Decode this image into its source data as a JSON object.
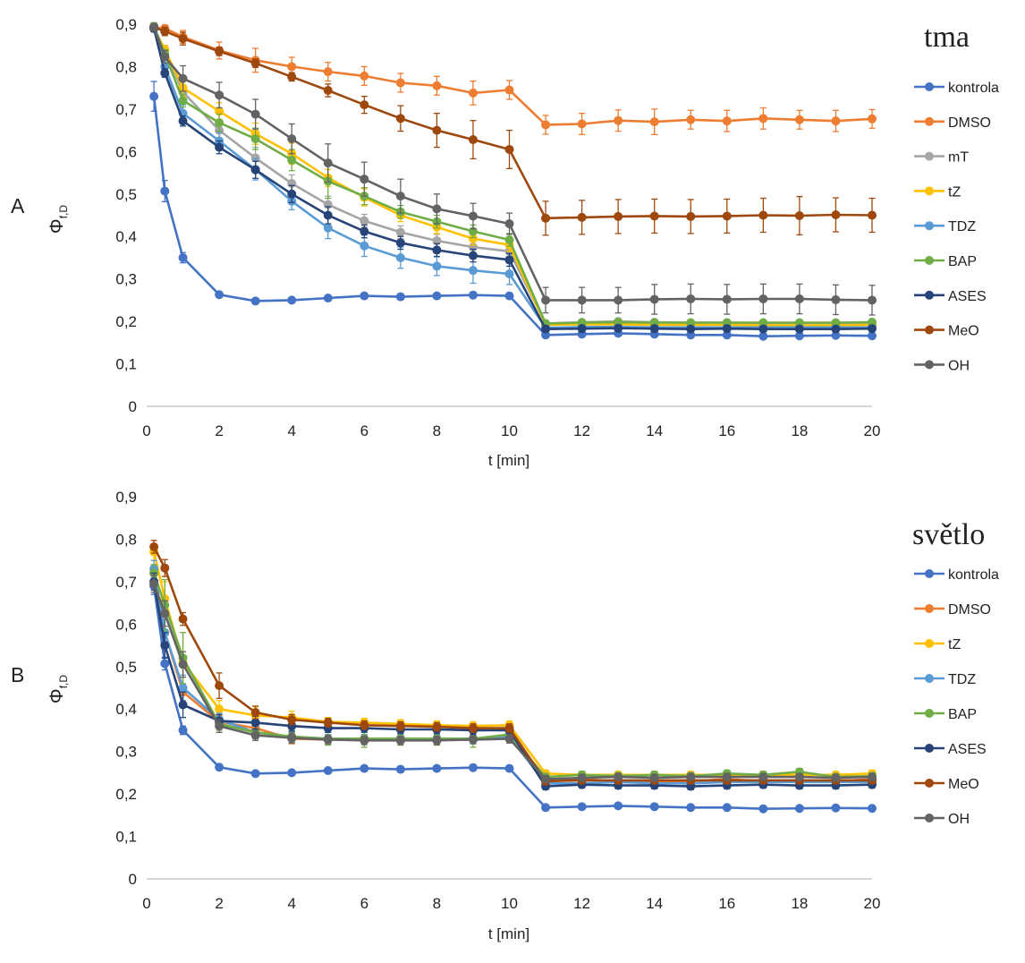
{
  "chart_data": [
    {
      "type": "line",
      "panel_label": "A",
      "title": "tma",
      "xlabel": "t [min]",
      "ylabel": "Φ",
      "ylabel_sub": "f,D",
      "xlim": [
        0,
        20
      ],
      "ylim": [
        0,
        0.9
      ],
      "xticks": [
        "0",
        "2",
        "4",
        "6",
        "8",
        "10",
        "12",
        "14",
        "16",
        "18",
        "20"
      ],
      "yticks": [
        "0",
        "0,1",
        "0,2",
        "0,3",
        "0,4",
        "0,5",
        "0,6",
        "0,7",
        "0,8",
        "0,9"
      ],
      "grid": false,
      "legend_position": "right",
      "x": [
        0.2,
        0.5,
        1,
        2,
        3,
        4,
        5,
        6,
        7,
        8,
        9,
        10,
        11,
        12,
        13,
        14,
        15,
        16,
        17,
        18,
        19,
        20
      ],
      "series": [
        {
          "name": "kontrola",
          "color": "#4472C4",
          "values": [
            0.73,
            0.507,
            0.35,
            0.263,
            0.248,
            0.25,
            0.255,
            0.26,
            0.258,
            0.26,
            0.262,
            0.26,
            0.168,
            0.17,
            0.172,
            0.17,
            0.168,
            0.168,
            0.165,
            0.166,
            0.167,
            0.166
          ],
          "errors": [
            0.035,
            0.025,
            0.012,
            0.006,
            0.006,
            0.006,
            0.006,
            0.006,
            0.006,
            0.006,
            0.006,
            0.006,
            0.006,
            0.006,
            0.006,
            0.006,
            0.006,
            0.006,
            0.006,
            0.006,
            0.006,
            0.006
          ]
        },
        {
          "name": "DMSO",
          "color": "#ED7D31",
          "values": [
            0.892,
            0.89,
            0.87,
            0.838,
            0.815,
            0.8,
            0.788,
            0.778,
            0.762,
            0.755,
            0.738,
            0.745,
            0.663,
            0.665,
            0.673,
            0.67,
            0.675,
            0.672,
            0.678,
            0.675,
            0.672,
            0.677
          ],
          "errors": [
            0.008,
            0.008,
            0.015,
            0.02,
            0.028,
            0.022,
            0.022,
            0.022,
            0.022,
            0.022,
            0.028,
            0.022,
            0.022,
            0.025,
            0.025,
            0.03,
            0.022,
            0.025,
            0.025,
            0.022,
            0.025,
            0.022
          ]
        },
        {
          "name": "mT",
          "color": "#A5A5A5",
          "values": [
            0.89,
            0.84,
            0.74,
            0.65,
            0.585,
            0.525,
            0.475,
            0.437,
            0.41,
            0.39,
            0.375,
            0.365,
            0.195,
            0.198,
            0.2,
            0.198,
            0.197,
            0.197,
            0.196,
            0.196,
            0.196,
            0.196
          ],
          "errors": [
            0.008,
            0.01,
            0.015,
            0.02,
            0.025,
            0.02,
            0.02,
            0.015,
            0.015,
            0.015,
            0.015,
            0.015,
            0.005,
            0.005,
            0.005,
            0.005,
            0.005,
            0.005,
            0.005,
            0.005,
            0.005,
            0.005
          ]
        },
        {
          "name": "tZ",
          "color": "#FFC000",
          "values": [
            0.89,
            0.84,
            0.75,
            0.695,
            0.642,
            0.595,
            0.538,
            0.492,
            0.45,
            0.422,
            0.395,
            0.38,
            0.192,
            0.193,
            0.193,
            0.192,
            0.192,
            0.192,
            0.191,
            0.191,
            0.191,
            0.192
          ],
          "errors": [
            0.008,
            0.01,
            0.02,
            0.02,
            0.025,
            0.025,
            0.02,
            0.02,
            0.015,
            0.015,
            0.015,
            0.015,
            0.005,
            0.005,
            0.005,
            0.005,
            0.005,
            0.005,
            0.005,
            0.005,
            0.005,
            0.005
          ]
        },
        {
          "name": "TDZ",
          "color": "#5B9BD5",
          "values": [
            0.89,
            0.8,
            0.69,
            0.625,
            0.558,
            0.483,
            0.42,
            0.378,
            0.35,
            0.33,
            0.32,
            0.312,
            0.185,
            0.187,
            0.187,
            0.186,
            0.186,
            0.186,
            0.186,
            0.186,
            0.186,
            0.186
          ],
          "errors": [
            0.008,
            0.01,
            0.02,
            0.02,
            0.025,
            0.02,
            0.025,
            0.025,
            0.025,
            0.022,
            0.03,
            0.025,
            0.005,
            0.005,
            0.005,
            0.005,
            0.005,
            0.005,
            0.005,
            0.005,
            0.005,
            0.005
          ]
        },
        {
          "name": "BAP",
          "color": "#70AD47",
          "values": [
            0.895,
            0.83,
            0.72,
            0.668,
            0.63,
            0.58,
            0.53,
            0.495,
            0.458,
            0.435,
            0.412,
            0.392,
            0.195,
            0.197,
            0.198,
            0.197,
            0.197,
            0.197,
            0.197,
            0.197,
            0.197,
            0.198
          ],
          "errors": [
            0.008,
            0.01,
            0.015,
            0.02,
            0.025,
            0.025,
            0.04,
            0.02,
            0.015,
            0.015,
            0.015,
            0.015,
            0.005,
            0.005,
            0.005,
            0.005,
            0.005,
            0.005,
            0.005,
            0.005,
            0.005,
            0.005
          ]
        },
        {
          "name": "ASES",
          "color": "#264478",
          "values": [
            0.89,
            0.785,
            0.672,
            0.61,
            0.557,
            0.5,
            0.45,
            0.412,
            0.385,
            0.368,
            0.355,
            0.345,
            0.182,
            0.183,
            0.184,
            0.183,
            0.182,
            0.183,
            0.182,
            0.182,
            0.182,
            0.183
          ],
          "errors": [
            0.008,
            0.01,
            0.012,
            0.015,
            0.02,
            0.02,
            0.02,
            0.015,
            0.015,
            0.015,
            0.015,
            0.015,
            0.005,
            0.005,
            0.005,
            0.005,
            0.005,
            0.005,
            0.005,
            0.005,
            0.005,
            0.005
          ]
        },
        {
          "name": "MeO",
          "color": "#9E480E",
          "values": [
            0.893,
            0.883,
            0.866,
            0.836,
            0.808,
            0.776,
            0.744,
            0.71,
            0.678,
            0.65,
            0.628,
            0.605,
            0.443,
            0.445,
            0.447,
            0.448,
            0.447,
            0.448,
            0.45,
            0.449,
            0.451,
            0.45
          ],
          "errors": [
            0.008,
            0.01,
            0.015,
            0.01,
            0.01,
            0.01,
            0.015,
            0.02,
            0.03,
            0.04,
            0.045,
            0.045,
            0.04,
            0.04,
            0.04,
            0.04,
            0.04,
            0.04,
            0.04,
            0.045,
            0.04,
            0.04
          ]
        },
        {
          "name": "OH",
          "color": "#636363",
          "values": [
            0.893,
            0.823,
            0.772,
            0.733,
            0.688,
            0.63,
            0.573,
            0.535,
            0.495,
            0.465,
            0.448,
            0.43,
            0.25,
            0.25,
            0.25,
            0.252,
            0.253,
            0.252,
            0.253,
            0.253,
            0.251,
            0.25
          ],
          "errors": [
            0.008,
            0.015,
            0.03,
            0.03,
            0.035,
            0.035,
            0.045,
            0.04,
            0.04,
            0.035,
            0.03,
            0.025,
            0.03,
            0.03,
            0.03,
            0.035,
            0.035,
            0.035,
            0.035,
            0.035,
            0.035,
            0.035
          ]
        }
      ]
    },
    {
      "type": "line",
      "panel_label": "B",
      "title": "světlo",
      "xlabel": "t [min]",
      "ylabel": "Φ",
      "ylabel_sub": "f,D",
      "xlim": [
        0,
        20
      ],
      "ylim": [
        0,
        0.9
      ],
      "xticks": [
        "0",
        "2",
        "4",
        "6",
        "8",
        "10",
        "12",
        "14",
        "16",
        "18",
        "20"
      ],
      "yticks": [
        "0",
        "0,1",
        "0,2",
        "0,3",
        "0,4",
        "0,5",
        "0,6",
        "0,7",
        "0,8",
        "0,9"
      ],
      "grid": false,
      "legend_position": "right",
      "x": [
        0.2,
        0.5,
        1,
        2,
        3,
        4,
        5,
        6,
        7,
        8,
        9,
        10,
        11,
        12,
        13,
        14,
        15,
        16,
        17,
        18,
        19,
        20
      ],
      "series": [
        {
          "name": "kontrola",
          "color": "#4472C4",
          "values": [
            0.69,
            0.507,
            0.35,
            0.263,
            0.248,
            0.25,
            0.255,
            0.26,
            0.258,
            0.26,
            0.262,
            0.26,
            0.168,
            0.17,
            0.172,
            0.17,
            0.168,
            0.168,
            0.165,
            0.166,
            0.167,
            0.166
          ],
          "errors": [
            0.02,
            0.015,
            0.01,
            0.006,
            0.006,
            0.006,
            0.006,
            0.006,
            0.006,
            0.006,
            0.006,
            0.006,
            0.005,
            0.005,
            0.005,
            0.005,
            0.005,
            0.005,
            0.005,
            0.005,
            0.005,
            0.005
          ]
        },
        {
          "name": "DMSO",
          "color": "#ED7D31",
          "values": [
            0.72,
            0.58,
            0.44,
            0.37,
            0.355,
            0.33,
            0.328,
            0.33,
            0.33,
            0.328,
            0.33,
            0.335,
            0.23,
            0.235,
            0.23,
            0.23,
            0.23,
            0.235,
            0.23,
            0.23,
            0.23,
            0.235
          ],
          "errors": [
            0.02,
            0.03,
            0.02,
            0.015,
            0.015,
            0.012,
            0.01,
            0.01,
            0.01,
            0.01,
            0.01,
            0.01,
            0.008,
            0.008,
            0.008,
            0.008,
            0.008,
            0.008,
            0.008,
            0.008,
            0.008,
            0.008
          ]
        },
        {
          "name": "tZ",
          "color": "#FFC000",
          "values": [
            0.77,
            0.66,
            0.51,
            0.4,
            0.385,
            0.38,
            0.37,
            0.368,
            0.365,
            0.362,
            0.36,
            0.362,
            0.248,
            0.245,
            0.245,
            0.245,
            0.245,
            0.245,
            0.245,
            0.245,
            0.245,
            0.248
          ],
          "errors": [
            0.02,
            0.04,
            0.07,
            0.02,
            0.02,
            0.015,
            0.01,
            0.01,
            0.01,
            0.01,
            0.01,
            0.01,
            0.008,
            0.008,
            0.008,
            0.008,
            0.008,
            0.008,
            0.008,
            0.008,
            0.008,
            0.008
          ]
        },
        {
          "name": "TDZ",
          "color": "#5B9BD5",
          "values": [
            0.73,
            0.58,
            0.45,
            0.375,
            0.345,
            0.335,
            0.33,
            0.33,
            0.33,
            0.33,
            0.33,
            0.335,
            0.225,
            0.225,
            0.228,
            0.225,
            0.225,
            0.228,
            0.228,
            0.228,
            0.228,
            0.228
          ],
          "errors": [
            0.02,
            0.03,
            0.03,
            0.015,
            0.015,
            0.012,
            0.01,
            0.01,
            0.01,
            0.01,
            0.01,
            0.01,
            0.008,
            0.008,
            0.008,
            0.008,
            0.008,
            0.008,
            0.008,
            0.008,
            0.008,
            0.008
          ]
        },
        {
          "name": "BAP",
          "color": "#70AD47",
          "values": [
            0.72,
            0.645,
            0.52,
            0.365,
            0.345,
            0.335,
            0.33,
            0.33,
            0.33,
            0.33,
            0.33,
            0.34,
            0.24,
            0.245,
            0.242,
            0.245,
            0.242,
            0.248,
            0.245,
            0.252,
            0.24,
            0.242
          ],
          "errors": [
            0.02,
            0.06,
            0.06,
            0.015,
            0.015,
            0.015,
            0.015,
            0.02,
            0.015,
            0.015,
            0.02,
            0.02,
            0.008,
            0.008,
            0.008,
            0.008,
            0.008,
            0.008,
            0.008,
            0.008,
            0.008,
            0.008
          ]
        },
        {
          "name": "ASES",
          "color": "#264478",
          "values": [
            0.7,
            0.55,
            0.41,
            0.372,
            0.368,
            0.36,
            0.355,
            0.355,
            0.352,
            0.352,
            0.35,
            0.35,
            0.218,
            0.222,
            0.22,
            0.22,
            0.218,
            0.22,
            0.222,
            0.22,
            0.22,
            0.222
          ],
          "errors": [
            0.02,
            0.03,
            0.03,
            0.015,
            0.015,
            0.012,
            0.01,
            0.01,
            0.01,
            0.01,
            0.01,
            0.01,
            0.008,
            0.008,
            0.008,
            0.008,
            0.008,
            0.008,
            0.008,
            0.008,
            0.008,
            0.008
          ]
        },
        {
          "name": "MeO",
          "color": "#9E480E",
          "values": [
            0.782,
            0.732,
            0.612,
            0.455,
            0.392,
            0.375,
            0.368,
            0.362,
            0.36,
            0.358,
            0.355,
            0.355,
            0.23,
            0.232,
            0.232,
            0.232,
            0.232,
            0.232,
            0.232,
            0.232,
            0.232,
            0.232
          ],
          "errors": [
            0.015,
            0.02,
            0.015,
            0.03,
            0.015,
            0.012,
            0.01,
            0.01,
            0.01,
            0.01,
            0.01,
            0.01,
            0.008,
            0.008,
            0.008,
            0.008,
            0.008,
            0.008,
            0.008,
            0.008,
            0.008,
            0.008
          ]
        },
        {
          "name": "OH",
          "color": "#636363",
          "values": [
            0.695,
            0.625,
            0.505,
            0.36,
            0.338,
            0.332,
            0.328,
            0.326,
            0.326,
            0.326,
            0.328,
            0.33,
            0.235,
            0.238,
            0.24,
            0.238,
            0.24,
            0.24,
            0.24,
            0.24,
            0.238,
            0.24
          ],
          "errors": [
            0.02,
            0.03,
            0.03,
            0.015,
            0.012,
            0.012,
            0.01,
            0.01,
            0.01,
            0.01,
            0.01,
            0.01,
            0.008,
            0.008,
            0.008,
            0.008,
            0.008,
            0.008,
            0.008,
            0.008,
            0.008,
            0.008
          ]
        }
      ]
    }
  ]
}
